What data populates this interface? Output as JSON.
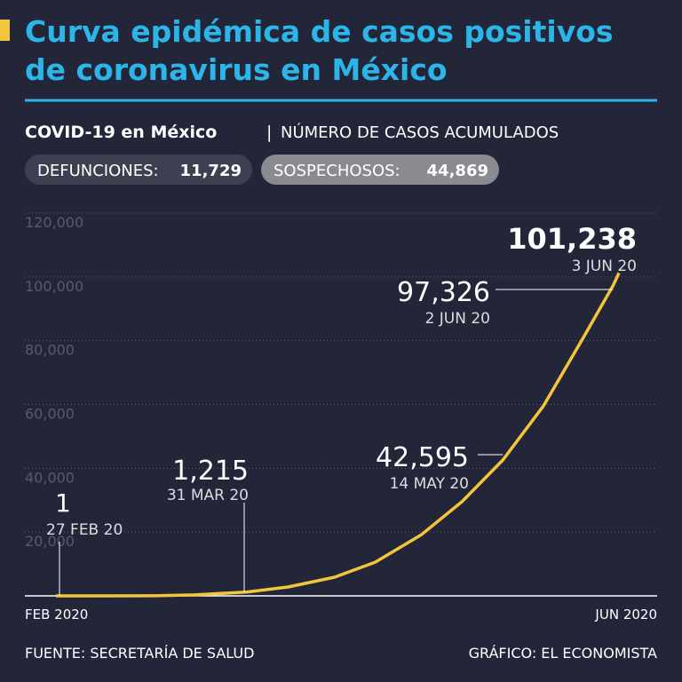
{
  "chart_data": {
    "type": "line",
    "title_lines": [
      "Curva epidémica de casos positivos",
      "de coronavirus en México"
    ],
    "subtitle_bold": "COVID-19 en México",
    "subtitle_separator": "|",
    "subtitle": "NÚMERO DE CASOS ACUMULADOS",
    "stats": [
      {
        "label": "DEFUNCIONES:",
        "value": "11,729"
      },
      {
        "label": "SOSPECHOSOS:",
        "value": "44,869"
      }
    ],
    "x": [
      "2020-02-27",
      "2020-03-07",
      "2020-03-15",
      "2020-03-22",
      "2020-03-31",
      "2020-04-07",
      "2020-04-15",
      "2020-04-22",
      "2020-04-30",
      "2020-05-07",
      "2020-05-14",
      "2020-05-21",
      "2020-05-28",
      "2020-06-02",
      "2020-06-03"
    ],
    "xlim": [
      "2020-02-27",
      "2020-06-03"
    ],
    "x_axis_labels": [
      "FEB 2020",
      "JUN 2020"
    ],
    "series": [
      {
        "name": "Casos acumulados",
        "color": "#f2c53d",
        "values": [
          1,
          7,
          41,
          316,
          1215,
          2785,
          5847,
          10544,
          19224,
          29616,
          42595,
          59567,
          81400,
          97326,
          101238
        ],
        "value_labels": [
          "1",
          null,
          null,
          null,
          "1,215",
          null,
          null,
          null,
          null,
          null,
          "42,595",
          null,
          null,
          "97,326",
          "101,238"
        ],
        "date_labels": [
          "27 FEB 20",
          null,
          null,
          null,
          "31 MAR 20",
          null,
          null,
          null,
          null,
          null,
          "14 MAY 20",
          null,
          null,
          "2 JUN 20",
          "3 JUN 20"
        ]
      }
    ],
    "ylim": [
      0,
      120000
    ],
    "yticks": [
      {
        "value": 20000,
        "label": "20,000"
      },
      {
        "value": 40000,
        "label": "40,000"
      },
      {
        "value": 60000,
        "label": "60,000"
      },
      {
        "value": 80000,
        "label": "80,000"
      },
      {
        "value": 100000,
        "label": "100,000"
      },
      {
        "value": 120000,
        "label": "120,000"
      }
    ],
    "grid": true,
    "source": "FUENTE: SECRETARÍA DE SALUD",
    "credit": "GRÁFICO: EL ECONOMISTA"
  }
}
